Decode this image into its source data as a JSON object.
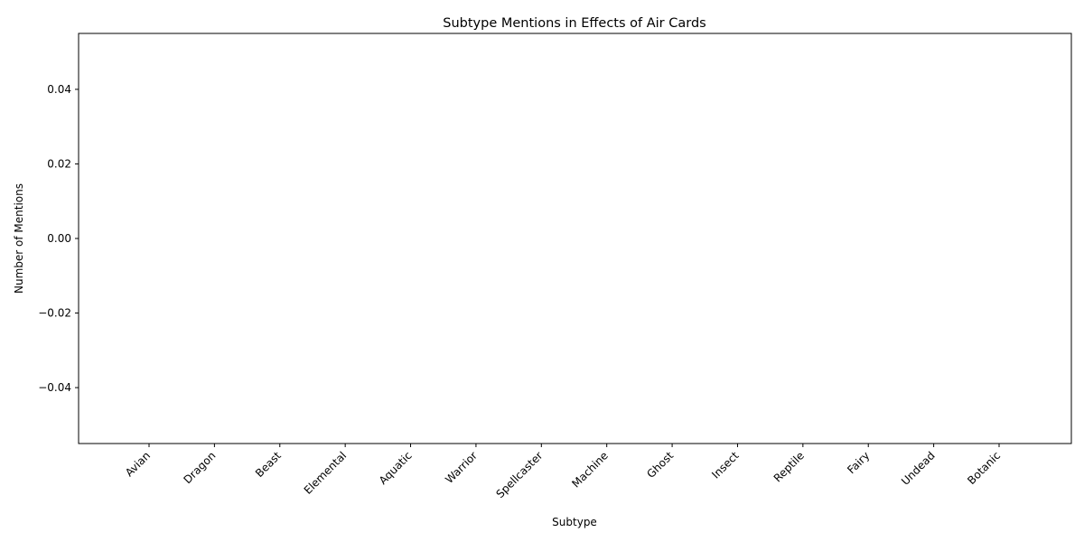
{
  "chart_data": {
    "type": "bar",
    "title": "Subtype Mentions in Effects of Air Cards",
    "xlabel": "Subtype",
    "ylabel": "Number of Mentions",
    "categories": [
      "Avian",
      "Dragon",
      "Beast",
      "Elemental",
      "Aquatic",
      "Warrior",
      "Spellcaster",
      "Machine",
      "Ghost",
      "Insect",
      "Reptile",
      "Fairy",
      "Undead",
      "Botanic"
    ],
    "values": [
      0,
      0,
      0,
      0,
      0,
      0,
      0,
      0,
      0,
      0,
      0,
      0,
      0,
      0
    ],
    "ylim": [
      -0.055,
      0.055
    ],
    "yticks": [
      -0.04,
      -0.02,
      0.0,
      0.02,
      0.04
    ],
    "ytick_labels": [
      "−0.04",
      "−0.02",
      "0.00",
      "0.02",
      "0.04"
    ],
    "grid": false,
    "legend": "none",
    "bar_color": "#1f77b4"
  }
}
